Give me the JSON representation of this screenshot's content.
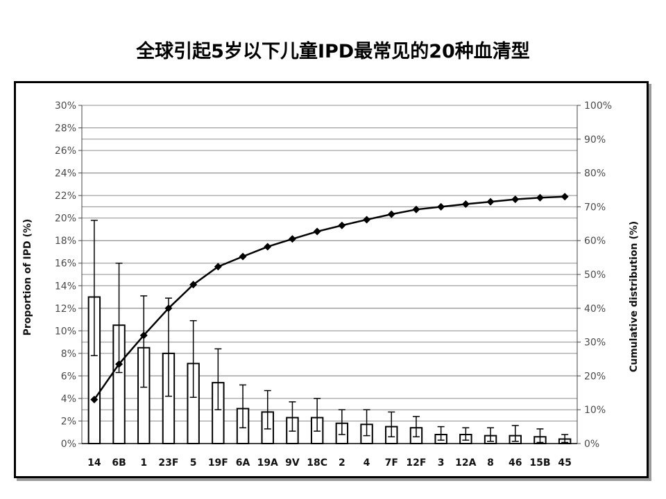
{
  "slide": {
    "title": "全球引起5岁以下儿童IPD最常见的20种血清型"
  },
  "chart_data": {
    "type": "bar",
    "title": "全球引起5岁以下儿童IPD最常见的20种血清型",
    "categories": [
      "14",
      "6B",
      "1",
      "23F",
      "5",
      "19F",
      "6A",
      "19A",
      "9V",
      "18C",
      "2",
      "4",
      "7F",
      "12F",
      "3",
      "12A",
      "8",
      "46",
      "15B",
      "45"
    ],
    "ylabel": "Proportion of IPD (%)",
    "y2label": "Cumulative distribution (%)",
    "ylim": [
      0,
      30
    ],
    "y2lim": [
      0,
      100
    ],
    "yticks": [
      "0%",
      "2%",
      "4%",
      "6%",
      "8%",
      "10%",
      "12%",
      "14%",
      "16%",
      "18%",
      "20%",
      "22%",
      "24%",
      "26%",
      "28%",
      "30%"
    ],
    "y2ticks": [
      "0%",
      "10%",
      "20%",
      "30%",
      "40%",
      "50%",
      "60%",
      "70%",
      "80%",
      "90%",
      "100%"
    ],
    "grid": true,
    "series": [
      {
        "type": "bar",
        "axis": "left",
        "values": [
          13.0,
          10.5,
          8.5,
          8.0,
          7.1,
          5.4,
          3.1,
          2.8,
          2.3,
          2.3,
          1.8,
          1.7,
          1.5,
          1.4,
          0.8,
          0.8,
          0.7,
          0.7,
          0.6,
          0.4
        ],
        "error_low": [
          7.8,
          6.3,
          5.0,
          4.2,
          4.1,
          3.0,
          1.4,
          1.3,
          1.1,
          1.1,
          0.8,
          0.7,
          0.6,
          0.6,
          0.3,
          0.3,
          0.2,
          0.2,
          0.1,
          0.1
        ],
        "error_high": [
          19.8,
          16.0,
          13.1,
          12.9,
          10.9,
          8.4,
          5.2,
          4.7,
          3.7,
          4.0,
          3.0,
          3.0,
          2.8,
          2.4,
          1.5,
          1.4,
          1.4,
          1.6,
          1.3,
          0.8
        ]
      },
      {
        "type": "line",
        "axis": "right",
        "marker": "diamond",
        "values": [
          13.0,
          23.5,
          32.0,
          40.0,
          47.0,
          52.3,
          55.3,
          58.2,
          60.5,
          62.7,
          64.5,
          66.2,
          67.8,
          69.2,
          70.0,
          70.8,
          71.5,
          72.2,
          72.7,
          73.0
        ]
      }
    ],
    "colors": {
      "bar_fill": "#ffffff",
      "bar_stroke": "#000000",
      "line": "#000000",
      "grid": "#8c8c8c"
    }
  }
}
